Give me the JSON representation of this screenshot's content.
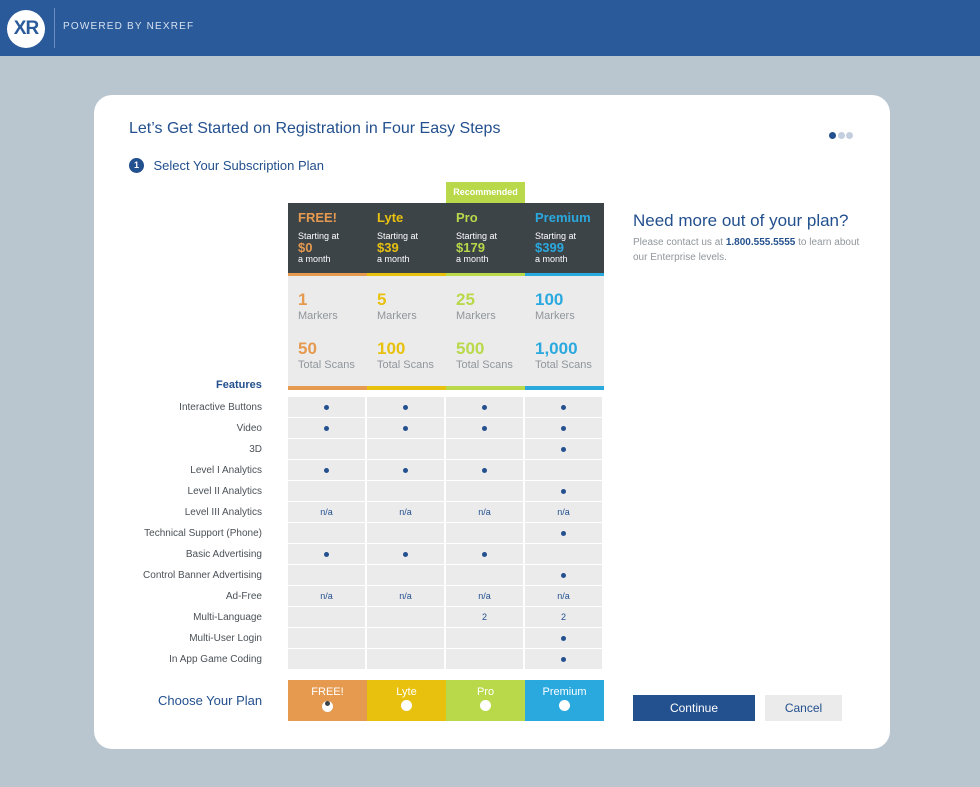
{
  "header": {
    "logo_text": "XR",
    "powered_by": "POWERED BY NEXREF"
  },
  "title": "Let’s Get Started on Registration in Four Easy Steps",
  "progress_dots": {
    "total": 3,
    "active": 1
  },
  "step": {
    "number": "1",
    "label": "Select Your Subscription Plan"
  },
  "recommended_badge": "Recommended",
  "plans": [
    {
      "name": "FREE!",
      "starting": "Starting at",
      "price": "$0",
      "period": "a month",
      "markers": "1",
      "markers_label": "Markers",
      "scans": "50",
      "scans_label": "Total Scans",
      "color": "#e59a50",
      "choose_label": "FREE!",
      "selected": true
    },
    {
      "name": "Lyte",
      "starting": "Starting at",
      "price": "$39",
      "period": "a month",
      "markers": "5",
      "markers_label": "Markers",
      "scans": "100",
      "scans_label": "Total Scans",
      "color": "#e8c10f",
      "choose_label": "Lyte",
      "selected": false
    },
    {
      "name": "Pro",
      "starting": "Starting at",
      "price": "$179",
      "period": "a month",
      "markers": "25",
      "markers_label": "Markers",
      "scans": "500",
      "scans_label": "Total Scans",
      "color": "#b9d94a",
      "choose_label": "Pro",
      "selected": false
    },
    {
      "name": "Premium",
      "starting": "Starting at",
      "price": "$399",
      "period": "a month",
      "markers": "100",
      "markers_label": "Markers",
      "scans": "1,000",
      "scans_label": "Total Scans",
      "color": "#2aa9df",
      "choose_label": "Premium",
      "selected": false
    }
  ],
  "features_title": "Features",
  "features": [
    {
      "label": "Interactive Buttons",
      "values": [
        "dot",
        "dot",
        "dot",
        "dot"
      ]
    },
    {
      "label": "Video",
      "values": [
        "dot",
        "dot",
        "dot",
        "dot"
      ]
    },
    {
      "label": "3D",
      "values": [
        "",
        "",
        "",
        "dot"
      ]
    },
    {
      "label": "Level I Analytics",
      "values": [
        "dot",
        "dot",
        "dot",
        ""
      ]
    },
    {
      "label": "Level II Analytics",
      "values": [
        "",
        "",
        "",
        "dot"
      ]
    },
    {
      "label": "Level III Analytics",
      "values": [
        "n/a",
        "n/a",
        "n/a",
        "n/a"
      ]
    },
    {
      "label": "Technical Support (Phone)",
      "values": [
        "",
        "",
        "",
        "dot"
      ]
    },
    {
      "label": "Basic Advertising",
      "values": [
        "dot",
        "dot",
        "dot",
        ""
      ]
    },
    {
      "label": "Control Banner Advertising",
      "values": [
        "",
        "",
        "",
        "dot"
      ]
    },
    {
      "label": "Ad-Free",
      "values": [
        "n/a",
        "n/a",
        "n/a",
        "n/a"
      ]
    },
    {
      "label": "Multi-Language",
      "values": [
        "",
        "",
        "2",
        "2"
      ]
    },
    {
      "label": "Multi-User Login",
      "values": [
        "",
        "",
        "",
        "dot"
      ]
    },
    {
      "label": "In App Game Coding",
      "values": [
        "",
        "",
        "",
        "dot"
      ]
    }
  ],
  "choose_plan_label": "Choose Your Plan",
  "sidebar": {
    "title": "Need more out of your plan?",
    "text_before": "Please contact us at ",
    "phone": "1.800.555.5555",
    "text_after": " to learn about our Enterprise levels."
  },
  "buttons": {
    "continue": "Continue",
    "cancel": "Cancel"
  },
  "colors": {
    "brand": "#2a5a9a",
    "navy": "#23508e",
    "dark": "#3d4448",
    "cell": "#ebebec"
  }
}
